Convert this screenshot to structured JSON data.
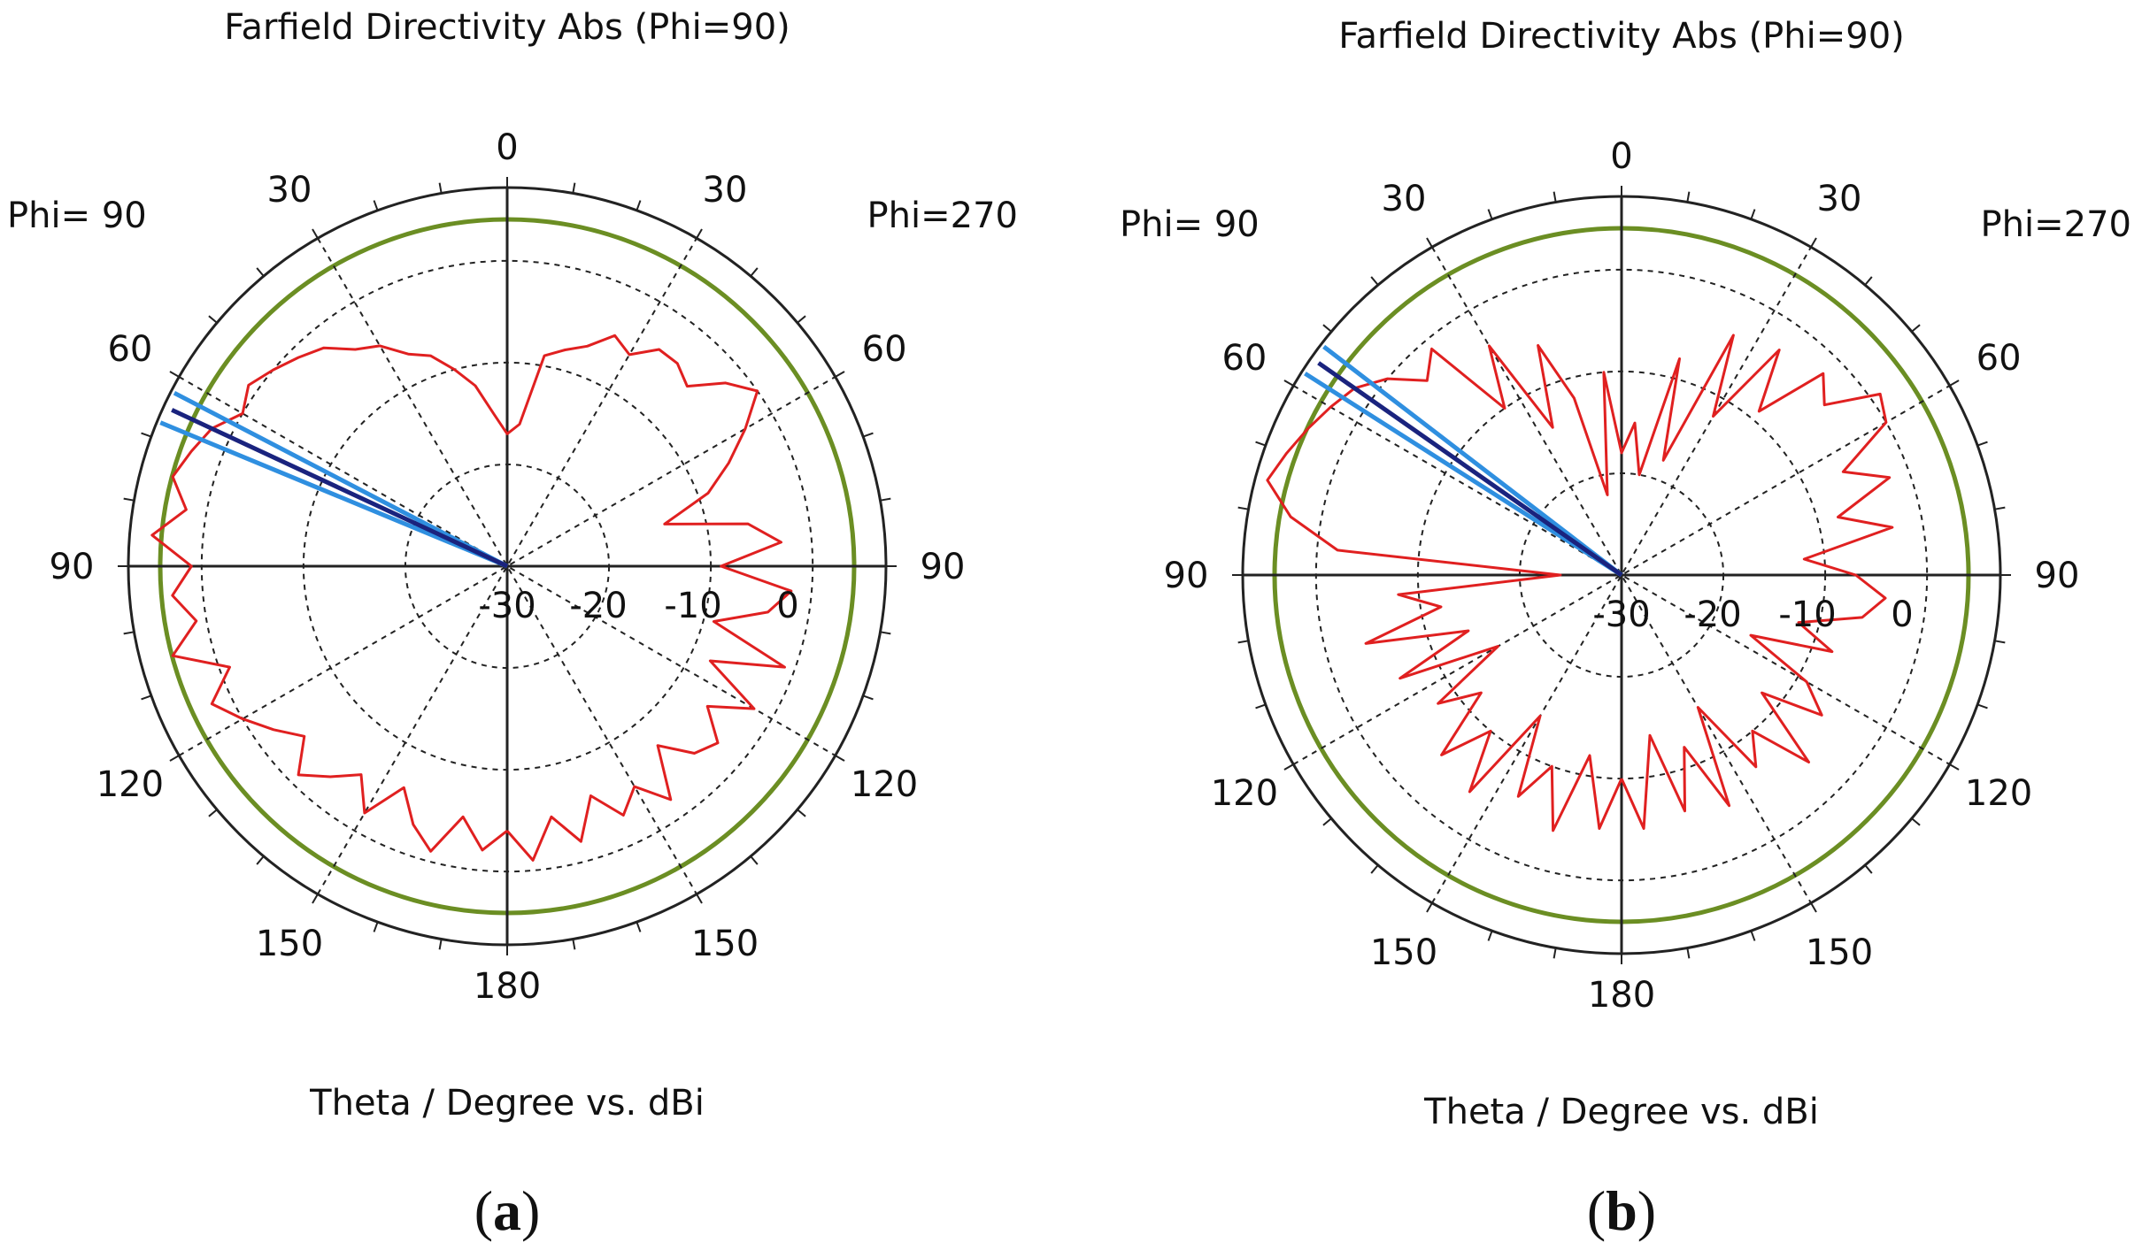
{
  "chart_data": [
    {
      "type": "polar",
      "panel": "a",
      "caption": {
        "open": "(",
        "letter": "a",
        "close": ")"
      },
      "title": "Farfield Directivity Abs (Phi=90)",
      "xlabel": "Theta / Degree vs. dBi",
      "phi_left": "Phi= 90",
      "phi_right": "Phi=270",
      "angle_ticks": [
        "0",
        "30",
        "60",
        "90",
        "120",
        "150",
        "180",
        "150",
        "120",
        "90",
        "60",
        "30"
      ],
      "radial_ticks": [
        "-30",
        "-20",
        "-10",
        "0"
      ],
      "r_range_dbi": [
        -30,
        7.2
      ],
      "grid": true,
      "colors": {
        "pattern": "#e02020",
        "main_lobe": "#1a237e",
        "beamwidth": "#2f8fe0",
        "reference": "#6b8e23",
        "grid": "#222222"
      },
      "main_lobe_direction_deg": 65,
      "beamwidth_lines_deg": [
        62.5,
        67.5
      ],
      "series": [
        {
          "name": "Directivity",
          "theta": [
            -180,
            -175,
            -170,
            -165,
            -160,
            -155,
            -150,
            -145,
            -140,
            -135,
            -130,
            -125,
            -120,
            -115,
            -110,
            -105,
            -100,
            -95,
            -90,
            -85,
            -80,
            -75,
            -70,
            -65,
            -60,
            -55,
            -50,
            -45,
            -40,
            -35,
            -30,
            -25,
            -20,
            -15,
            -10,
            -5,
            0,
            5,
            10,
            15,
            20,
            25,
            30,
            35,
            40,
            45,
            50,
            55,
            60,
            65,
            70,
            75,
            80,
            85,
            90,
            95,
            100,
            105,
            110,
            115,
            120,
            125,
            130,
            135,
            140,
            145,
            150,
            155,
            160,
            165,
            170,
            175,
            180
          ],
          "dbi": [
            -4,
            -1,
            -5,
            -2,
            -6,
            -3,
            -5,
            -2,
            -7,
            -4,
            -3,
            -6,
            -2,
            -8,
            -1,
            -9,
            -4,
            -2,
            -9,
            -3,
            -6,
            -14,
            -9,
            -6,
            -3,
            0,
            -2,
            -5,
            -4,
            -4,
            -6,
            -5,
            -7,
            -8,
            -9,
            -16,
            -17,
            -15,
            -12,
            -10,
            -8,
            -7,
            -5,
            -4,
            -2,
            -1,
            0,
            1,
            0,
            2,
            3,
            4,
            2,
            5,
            1,
            3,
            1,
            4,
            -1,
            2,
            0,
            -2,
            -4,
            -1,
            -3,
            -5,
            -2,
            -6,
            -3,
            -1,
            -5,
            -2,
            -4
          ]
        }
      ]
    },
    {
      "type": "polar",
      "panel": "b",
      "caption": {
        "open": "(",
        "letter": "b",
        "close": ")"
      },
      "title": "Farfield Directivity Abs (Phi=90)",
      "xlabel": "Theta / Degree vs. dBi",
      "phi_left": "Phi= 90",
      "phi_right": "Phi=270",
      "angle_ticks": [
        "0",
        "30",
        "60",
        "90",
        "120",
        "150",
        "180",
        "150",
        "120",
        "90",
        "60",
        "30"
      ],
      "radial_ticks": [
        "-30",
        "-20",
        "-10",
        "0"
      ],
      "r_range_dbi": [
        -30,
        7.2
      ],
      "grid": true,
      "colors": {
        "pattern": "#e02020",
        "main_lobe": "#1a237e",
        "beamwidth": "#2f8fe0",
        "reference": "#6b8e23",
        "grid": "#222222"
      },
      "main_lobe_direction_deg": 55,
      "beamwidth_lines_deg": [
        52.5,
        57.5
      ],
      "series": [
        {
          "name": "Directivity",
          "theta": [
            -180,
            -175,
            -170,
            -165,
            -160,
            -155,
            -150,
            -145,
            -140,
            -135,
            -130,
            -125,
            -120,
            -115,
            -110,
            -105,
            -100,
            -95,
            -90,
            -85,
            -80,
            -75,
            -70,
            -65,
            -60,
            -55,
            -50,
            -45,
            -40,
            -35,
            -30,
            -25,
            -20,
            -15,
            -10,
            -5,
            0,
            5,
            10,
            15,
            20,
            25,
            30,
            35,
            40,
            45,
            50,
            55,
            60,
            65,
            70,
            75,
            80,
            85,
            90,
            95,
            100,
            105,
            110,
            115,
            120,
            125,
            130,
            135,
            140,
            145,
            150,
            155,
            160,
            165,
            170,
            175,
            180
          ],
          "dbi": [
            -10,
            -5,
            -14,
            -6,
            -12,
            -5,
            -15,
            -7,
            -10,
            -4,
            -12,
            -6,
            -9,
            -16,
            -8,
            -12,
            -6,
            -4,
            -7,
            -12,
            -3,
            -8,
            -2,
            -6,
            0,
            1,
            -4,
            -2,
            -9,
            -3,
            -12,
            -4,
            -18,
            -8,
            -20,
            -15,
            -18,
            -10,
            -22,
            -12,
            -6,
            -14,
            -4,
            -10,
            -1,
            -3,
            0,
            2,
            3,
            4,
            5,
            6,
            3,
            -2,
            -24,
            -8,
            -12,
            -4,
            -14,
            -6,
            -16,
            -8,
            -12,
            -5,
            -10,
            -4,
            -14,
            -6,
            -10,
            -4,
            -12,
            -5,
            -10
          ]
        }
      ]
    }
  ]
}
